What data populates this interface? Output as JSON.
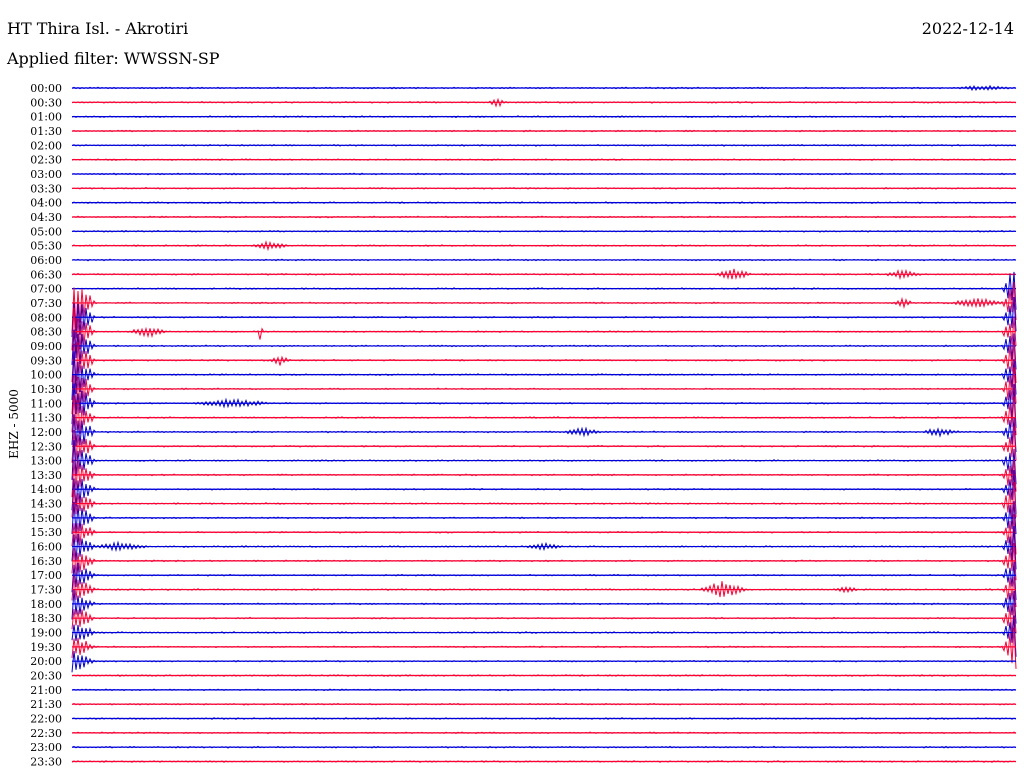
{
  "header": {
    "station": "HT Thira Isl. - Akrotiri",
    "date": "2022-12-14",
    "filter": "Applied filter: WWSSN-SP"
  },
  "chart_data": {
    "type": "line",
    "title": "HT Thira Isl. - Akrotiri",
    "ylabel": "EHZ - 5000",
    "colors": {
      "even": "#0000dd",
      "odd": "#ff0033"
    },
    "rows": [
      "00:00",
      "00:30",
      "01:00",
      "01:30",
      "02:00",
      "02:30",
      "03:00",
      "03:30",
      "04:00",
      "04:30",
      "05:00",
      "05:30",
      "06:00",
      "06:30",
      "07:00",
      "07:30",
      "08:00",
      "08:30",
      "09:00",
      "09:30",
      "10:00",
      "10:30",
      "11:00",
      "11:30",
      "12:00",
      "12:30",
      "13:00",
      "13:30",
      "14:00",
      "14:30",
      "15:00",
      "15:30",
      "16:00",
      "16:30",
      "17:00",
      "17:30",
      "18:00",
      "18:30",
      "19:00",
      "19:30",
      "20:00",
      "20:30",
      "21:00",
      "21:30",
      "22:00",
      "22:30",
      "23:00",
      "23:30"
    ],
    "events": [
      {
        "row": 0,
        "t": 0.965,
        "amp": 2,
        "dur": 0.03
      },
      {
        "row": 1,
        "t": 0.45,
        "amp": 6,
        "dur": 0.008
      },
      {
        "row": 11,
        "t": 0.21,
        "amp": 4,
        "dur": 0.02
      },
      {
        "row": 13,
        "t": 0.7,
        "amp": 6,
        "dur": 0.02
      },
      {
        "row": 13,
        "t": 0.88,
        "amp": 4,
        "dur": 0.02
      },
      {
        "row": 15,
        "t": 0.88,
        "amp": 6,
        "dur": 0.01
      },
      {
        "row": 15,
        "t": 0.96,
        "amp": 5,
        "dur": 0.03
      },
      {
        "row": 17,
        "t": 0.08,
        "amp": 5,
        "dur": 0.02
      },
      {
        "row": 17,
        "t": 0.2,
        "amp": 14,
        "dur": 0.002
      },
      {
        "row": 19,
        "t": 0.22,
        "amp": 5,
        "dur": 0.01
      },
      {
        "row": 22,
        "t": 0.17,
        "amp": 4,
        "dur": 0.04
      },
      {
        "row": 24,
        "t": 0.54,
        "amp": 4,
        "dur": 0.02
      },
      {
        "row": 24,
        "t": 0.92,
        "amp": 4,
        "dur": 0.02
      },
      {
        "row": 32,
        "t": 0.05,
        "amp": 4,
        "dur": 0.03
      },
      {
        "row": 32,
        "t": 0.5,
        "amp": 3,
        "dur": 0.02
      },
      {
        "row": 35,
        "t": 0.69,
        "amp": 9,
        "dur": 0.025
      },
      {
        "row": 35,
        "t": 0.82,
        "amp": 3,
        "dur": 0.015
      }
    ],
    "quake": {
      "start_row": 15,
      "end_row": 40,
      "t": 0.0,
      "amp": 50
    }
  }
}
